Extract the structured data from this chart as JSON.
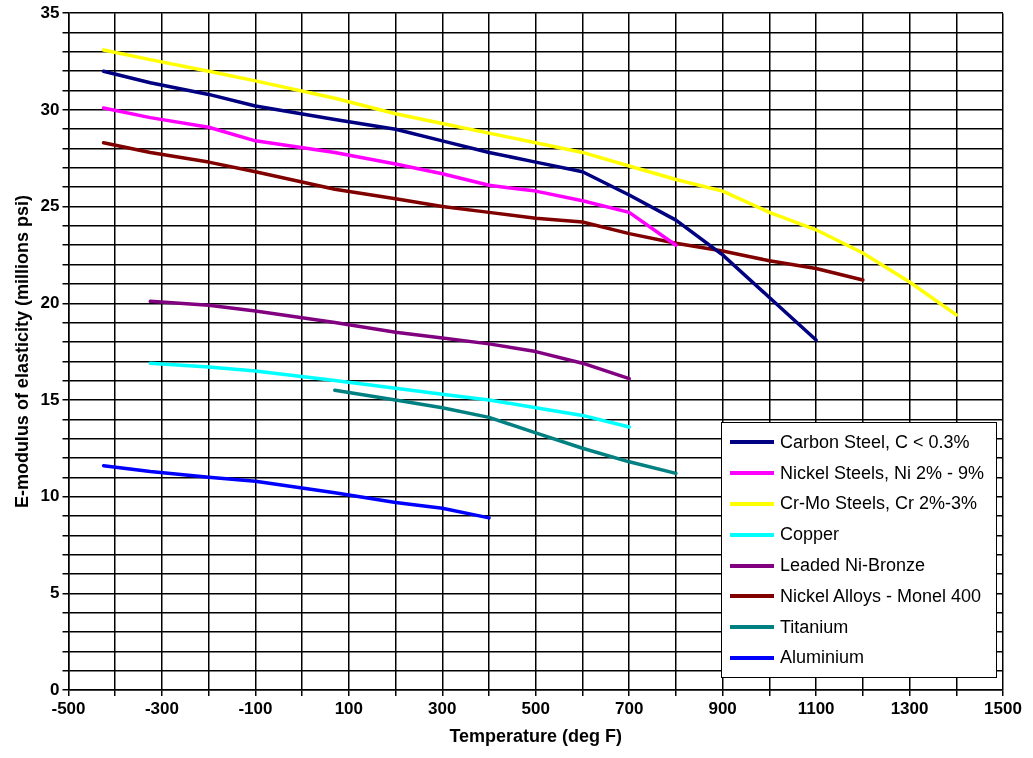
{
  "chart_data": {
    "type": "line",
    "xlabel": "Temperature (deg F)",
    "ylabel": "E-modulus of elasticity (millions psi)",
    "xlim": [
      -500,
      1500
    ],
    "ylim": [
      0,
      35
    ],
    "xticks": [
      -500,
      {
        "value": -400,
        "label": null
      },
      -300,
      {
        "value": -200,
        "label": null
      },
      -100,
      {
        "value": 0,
        "label": null
      },
      100,
      {
        "value": 200,
        "label": null
      },
      300,
      {
        "value": 400,
        "label": null
      },
      500,
      {
        "value": 600,
        "label": null
      },
      700,
      {
        "value": 800,
        "label": null
      },
      900,
      {
        "value": 1000,
        "label": null
      },
      1100,
      {
        "value": 1200,
        "label": null
      },
      1300,
      {
        "value": 1400,
        "label": null
      },
      1500
    ],
    "yticks": [
      0,
      {
        "value": 1,
        "label": null
      },
      {
        "value": 2,
        "label": null
      },
      {
        "value": 3,
        "label": null
      },
      {
        "value": 4,
        "label": null
      },
      5,
      {
        "value": 6,
        "label": null
      },
      {
        "value": 7,
        "label": null
      },
      {
        "value": 8,
        "label": null
      },
      {
        "value": 9,
        "label": null
      },
      10,
      {
        "value": 11,
        "label": null
      },
      {
        "value": 12,
        "label": null
      },
      {
        "value": 13,
        "label": null
      },
      {
        "value": 14,
        "label": null
      },
      15,
      {
        "value": 16,
        "label": null
      },
      {
        "value": 17,
        "label": null
      },
      {
        "value": 18,
        "label": null
      },
      {
        "value": 19,
        "label": null
      },
      20,
      {
        "value": 21,
        "label": null
      },
      {
        "value": 22,
        "label": null
      },
      {
        "value": 23,
        "label": null
      },
      {
        "value": 24,
        "label": null
      },
      25,
      {
        "value": 26,
        "label": null
      },
      {
        "value": 27,
        "label": null
      },
      {
        "value": 28,
        "label": null
      },
      {
        "value": 29,
        "label": null
      },
      30,
      {
        "value": 31,
        "label": null
      },
      {
        "value": 32,
        "label": null
      },
      {
        "value": 33,
        "label": null
      },
      {
        "value": 34,
        "label": null
      },
      35
    ],
    "grid": true,
    "legend": "bottom right",
    "marker": "none",
    "line_style": "solid",
    "series": [
      {
        "name": "Carbon Steel, C < 0.3%",
        "color": "#000080",
        "x": [
          -425,
          -325,
          -200,
          -100,
          70,
          200,
          300,
          400,
          500,
          600,
          700,
          800,
          900,
          1000,
          1100
        ],
        "values": [
          32.0,
          31.4,
          30.8,
          30.2,
          29.5,
          29.0,
          28.4,
          27.8,
          27.3,
          26.8,
          25.6,
          24.3,
          22.5,
          20.3,
          18.1
        ]
      },
      {
        "name": "Nickel Steels, Ni 2% - 9%",
        "color": "#ff00ff",
        "x": [
          -425,
          -325,
          -200,
          -100,
          70,
          200,
          300,
          400,
          500,
          600,
          700,
          800
        ],
        "values": [
          30.1,
          29.6,
          29.1,
          28.4,
          27.8,
          27.2,
          26.7,
          26.1,
          25.8,
          25.3,
          24.7,
          23.0
        ]
      },
      {
        "name": "Cr-Mo Steels, Cr 2%-3%",
        "color": "#ffff00",
        "x": [
          -425,
          -325,
          -200,
          -100,
          70,
          200,
          300,
          400,
          500,
          600,
          700,
          800,
          900,
          1000,
          1100,
          1200,
          1300,
          1400
        ],
        "values": [
          33.1,
          32.6,
          32.0,
          31.5,
          30.6,
          29.8,
          29.3,
          28.8,
          28.3,
          27.8,
          27.1,
          26.4,
          25.8,
          24.7,
          23.8,
          22.6,
          21.1,
          19.4
        ]
      },
      {
        "name": "Copper",
        "color": "#00ffff",
        "x": [
          -325,
          -200,
          -100,
          70,
          200,
          300,
          400,
          500,
          600,
          700
        ],
        "values": [
          16.9,
          16.7,
          16.5,
          16.0,
          15.6,
          15.3,
          15.0,
          14.6,
          14.2,
          13.6
        ]
      },
      {
        "name": "Leaded Ni-Bronze",
        "color": "#800080",
        "x": [
          -325,
          -200,
          -100,
          70,
          200,
          300,
          400,
          500,
          600,
          700
        ],
        "values": [
          20.1,
          19.9,
          19.6,
          19.0,
          18.5,
          18.2,
          17.9,
          17.5,
          16.9,
          16.1
        ]
      },
      {
        "name": "Nickel Alloys - Monel 400",
        "color": "#800000",
        "x": [
          -425,
          -325,
          -200,
          -100,
          70,
          200,
          300,
          400,
          500,
          600,
          700,
          800,
          900,
          1000,
          1100,
          1200
        ],
        "values": [
          28.3,
          27.8,
          27.3,
          26.8,
          25.9,
          25.4,
          25.0,
          24.7,
          24.4,
          24.2,
          23.6,
          23.1,
          22.7,
          22.2,
          21.8,
          21.2
        ]
      },
      {
        "name": "Titanium",
        "color": "#008080",
        "x": [
          70,
          200,
          300,
          400,
          500,
          600,
          700,
          800
        ],
        "values": [
          15.5,
          15.0,
          14.6,
          14.1,
          13.3,
          12.5,
          11.8,
          11.2
        ]
      },
      {
        "name": "Aluminium",
        "color": "#0000ff",
        "x": [
          -425,
          -325,
          -200,
          -100,
          70,
          200,
          300,
          400
        ],
        "values": [
          11.6,
          11.3,
          11.0,
          10.8,
          10.2,
          9.7,
          9.4,
          8.9
        ]
      }
    ]
  }
}
